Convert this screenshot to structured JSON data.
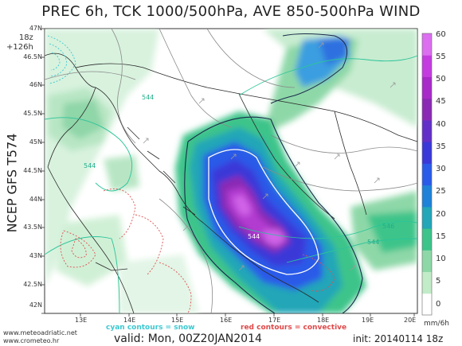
{
  "header": {
    "title": "PREC 6h, TCK 1000/500hPa, AVE 850-500hPa WIND",
    "run_hour": "18z",
    "lead_time": "+126h",
    "model": "NCEP GFS T574"
  },
  "axes": {
    "latitudes": [
      "47N",
      "46.5N",
      "46N",
      "45.5N",
      "45N",
      "44.5N",
      "44N",
      "43.5N",
      "43N",
      "42.5N",
      "42N"
    ],
    "longitudes": [
      "13E",
      "14E",
      "15E",
      "16E",
      "17E",
      "18E",
      "19E",
      "20E"
    ]
  },
  "colorbar": {
    "ticks": [
      "60",
      "55",
      "50",
      "45",
      "40",
      "35",
      "30",
      "25",
      "20",
      "15",
      "10",
      "5",
      "0"
    ],
    "unit": "mm/6h",
    "colors": [
      "#ffffff",
      "#c2ecc8",
      "#8ed8a8",
      "#3cc48a",
      "#22a6b8",
      "#1d82d8",
      "#2a5ae8",
      "#3a38d8",
      "#6230c8",
      "#8a2ab4",
      "#a82ac8",
      "#c43ce0",
      "#dc6ef0"
    ]
  },
  "contours": {
    "thickness_labels": [
      "544",
      "544",
      "544",
      "546",
      "544"
    ]
  },
  "legend": {
    "cyan": "cyan contours = snow",
    "red": "red contours = convective"
  },
  "footer": {
    "valid": "valid: Mon, 00Z20JAN2014",
    "init": "init: 20140114 18z",
    "site1": "www.meteoadriatic.net",
    "site2": "www.crometeo.hr"
  }
}
